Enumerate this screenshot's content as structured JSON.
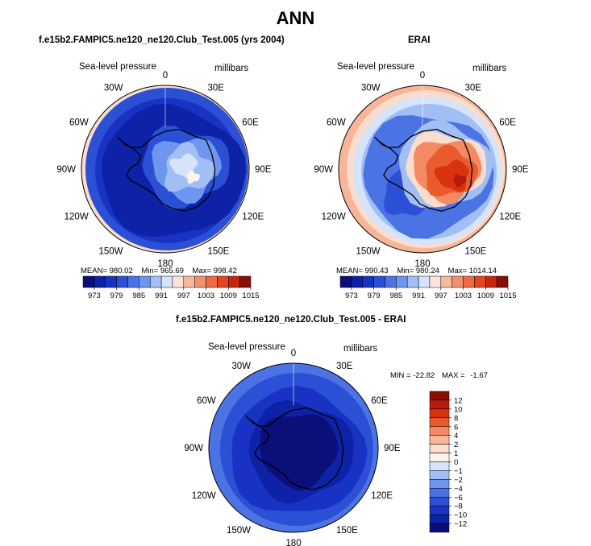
{
  "page_title": "ANN",
  "colors": {
    "deep_blue": "#0a0f7a",
    "blue": "#1833c4",
    "mid_blue": "#3a64de",
    "light_blue": "#8fb1f0",
    "pale_blue": "#d6e4fb",
    "pale_pink": "#fbdccd",
    "red": "#e2461f",
    "dark_red": "#8b0d07"
  },
  "chart_data": [
    {
      "type": "polar-contour-map",
      "title": "f.e15b2.FAMPIC5.ne120_ne120.Club_Test.005 (yrs 2004)",
      "variable": "Sea-level pressure",
      "units": "millibars",
      "longitude_labels": [
        "0",
        "30E",
        "60E",
        "90E",
        "120E",
        "150E",
        "180",
        "150W",
        "120W",
        "90W",
        "60W",
        "30W"
      ],
      "stats": {
        "mean_label": "MEAN=",
        "mean": "980.02",
        "min_label": "Min=",
        "min": "965.69",
        "max_label": "Max=",
        "max": "998.42"
      },
      "colorbar": {
        "tick_labels": [
          "973",
          "979",
          "985",
          "991",
          "997",
          "1003",
          "1009",
          "1015"
        ]
      }
    },
    {
      "type": "polar-contour-map",
      "title": "ERAI",
      "variable": "Sea-level pressure",
      "units": "millibars",
      "longitude_labels": [
        "0",
        "30E",
        "60E",
        "90E",
        "120E",
        "150E",
        "180",
        "150W",
        "120W",
        "90W",
        "60W",
        "30W"
      ],
      "stats": {
        "mean_label": "MEAN=",
        "mean": "990.43",
        "min_label": "Min=",
        "min": "980.24",
        "max_label": "Max=",
        "max": "1014.14"
      },
      "colorbar": {
        "tick_labels": [
          "973",
          "979",
          "985",
          "991",
          "997",
          "1003",
          "1009",
          "1015"
        ]
      }
    },
    {
      "type": "polar-contour-map",
      "title": "f.e15b2.FAMPIC5.ne120_ne120.Club_Test.005 - ERAI",
      "variable": "Sea-level pressure",
      "units": "millibars",
      "longitude_labels": [
        "0",
        "30E",
        "60E",
        "90E",
        "120E",
        "150E",
        "180",
        "150W",
        "120W",
        "90W",
        "60W",
        "30W"
      ],
      "stats": {
        "min_label": "MIN =",
        "min": "-22.82",
        "max_label": "MAX =",
        "max": "-1.67"
      },
      "colorbar": {
        "tick_labels": [
          "12",
          "10",
          "8",
          "6",
          "4",
          "2",
          "1",
          "0",
          "−1",
          "−2",
          "−4",
          "−6",
          "−8",
          "−10",
          "−12"
        ]
      }
    }
  ]
}
